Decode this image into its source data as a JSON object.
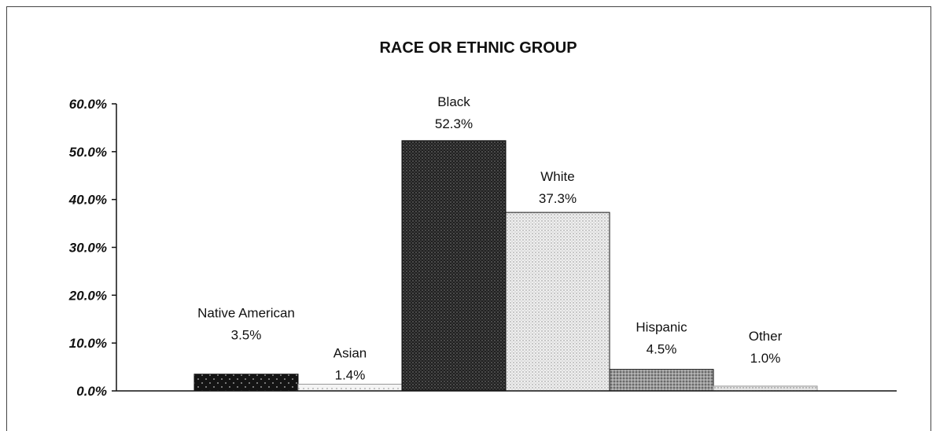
{
  "chart_data": {
    "type": "bar",
    "title": "RACE OR ETHNIC GROUP",
    "xlabel": "",
    "ylabel": "",
    "ylim": [
      0,
      60
    ],
    "yticks": [
      "0.0%",
      "10.0%",
      "20.0%",
      "30.0%",
      "40.0%",
      "50.0%",
      "60.0%"
    ],
    "categories": [
      "Native American",
      "Asian",
      "Black",
      "White",
      "Hispanic",
      "Other"
    ],
    "values": [
      3.5,
      1.4,
      52.3,
      37.3,
      4.5,
      1.0
    ],
    "value_labels": [
      "3.5%",
      "1.4%",
      "52.3%",
      "37.3%",
      "4.5%",
      "1.0%"
    ],
    "grid": false,
    "legend": "none",
    "colors": {
      "native_american": "#1a1a1a",
      "asian": "#e6e6e6",
      "black": "#2a2a2a",
      "white": "#e0e0e0",
      "hispanic": "#8a8a8a",
      "other": "#dcdcdc"
    }
  }
}
